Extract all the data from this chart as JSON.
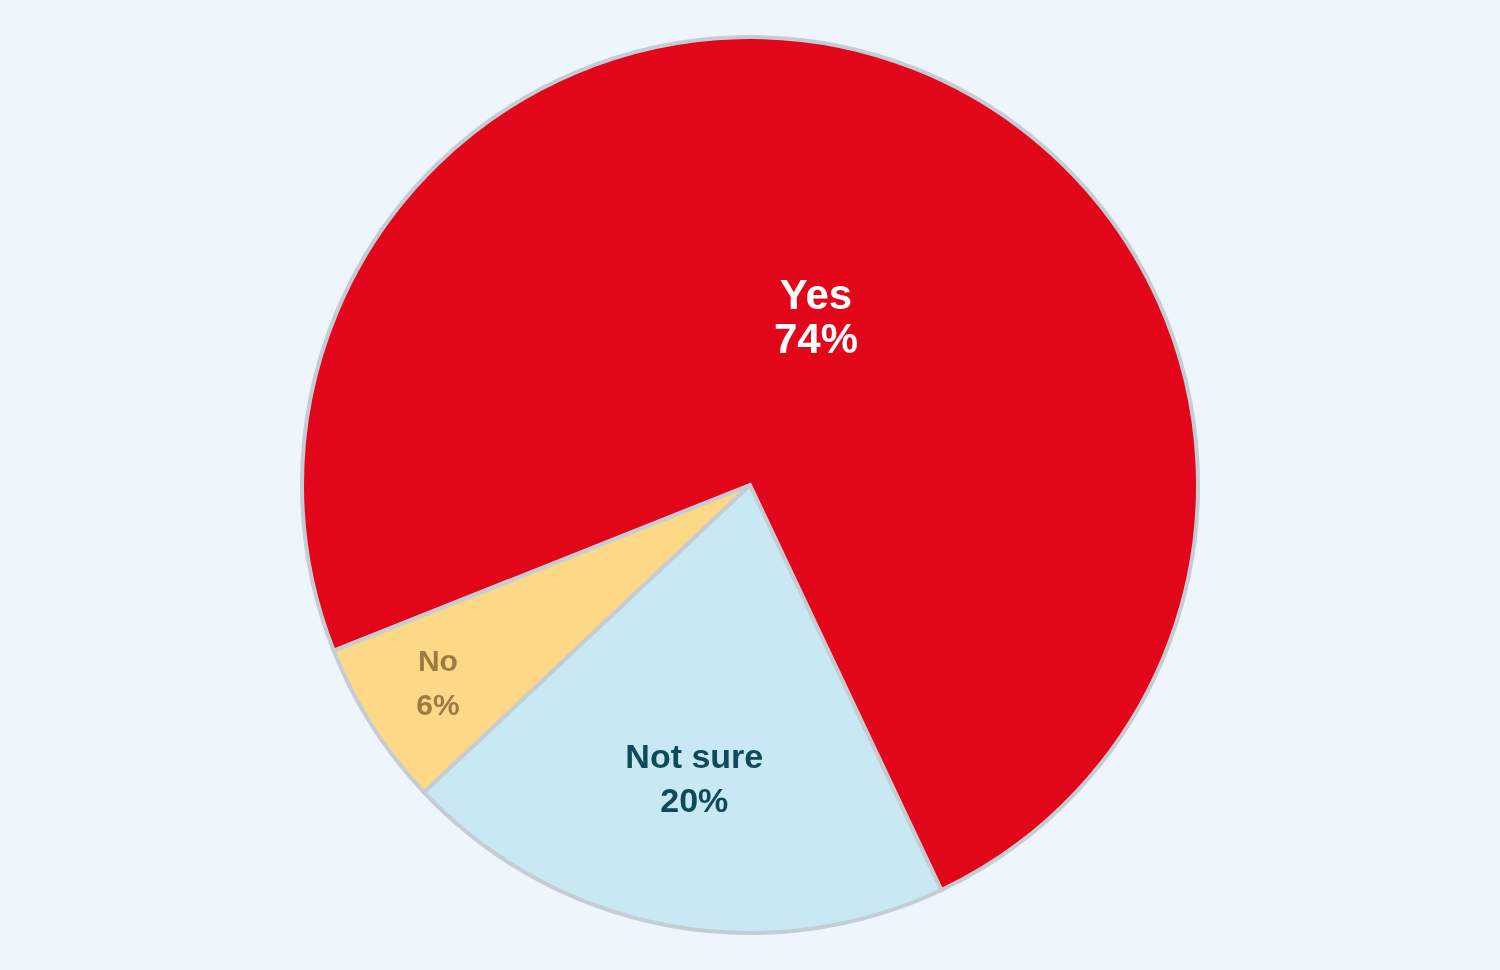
{
  "chart_data": {
    "type": "pie",
    "categories": [
      "Not sure",
      "No",
      "Yes"
    ],
    "values": [
      20,
      6,
      74
    ],
    "colors": [
      "#c8e9f3",
      "#fdd886",
      "#e10619"
    ],
    "data_labels": true,
    "value_labels": [
      "20%",
      "6%",
      "74%"
    ],
    "legend": false
  }
}
